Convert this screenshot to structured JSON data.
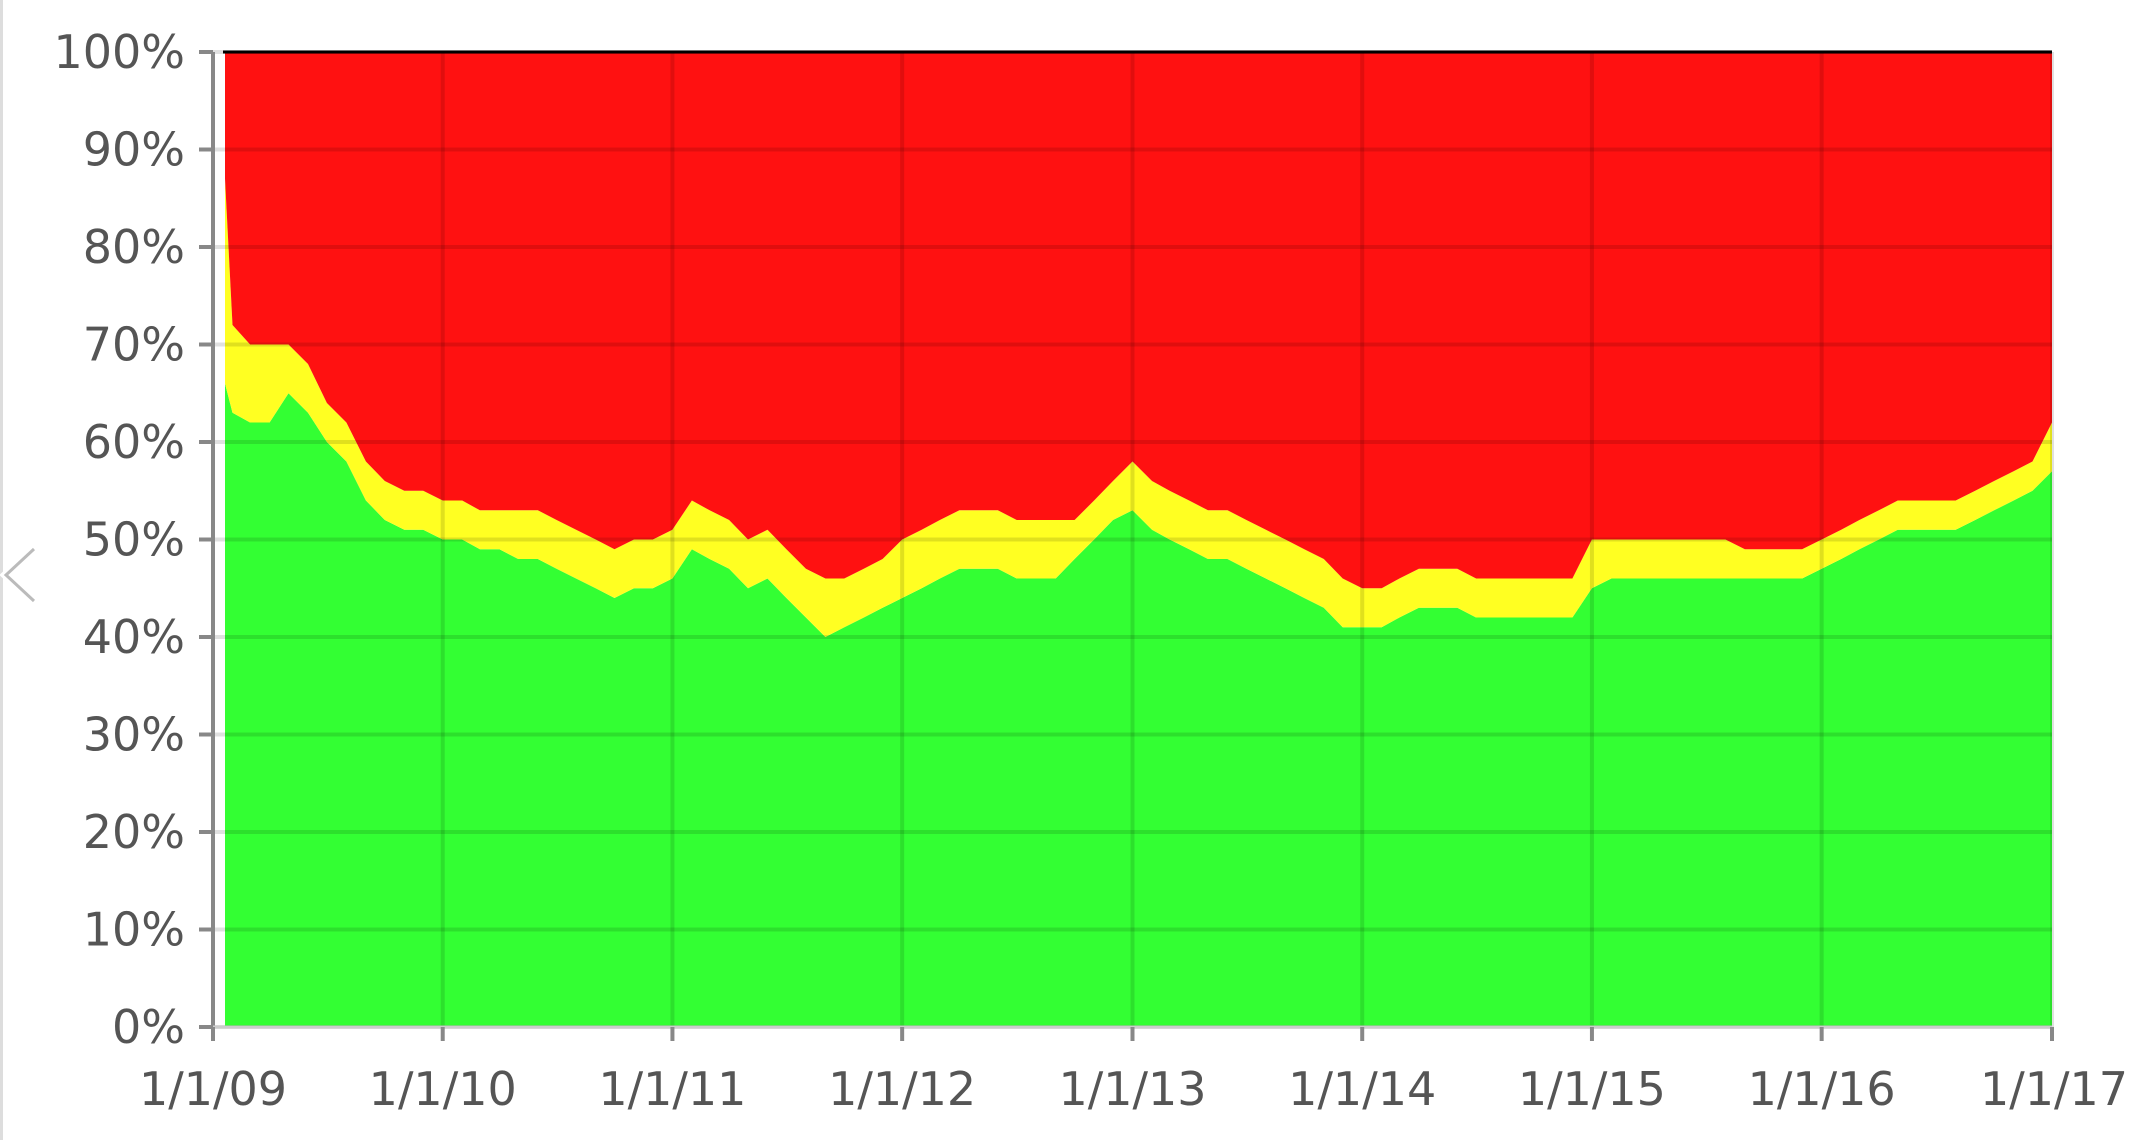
{
  "chart_data": {
    "type": "area",
    "stacked": true,
    "normalized_percent": true,
    "title": "",
    "xlabel": "",
    "ylabel": "",
    "ylim": [
      0,
      100
    ],
    "xlim": [
      "2009-01-01",
      "2017-01-01"
    ],
    "grid": true,
    "legend": "none",
    "y_ticks": [
      "0%",
      "10%",
      "20%",
      "30%",
      "40%",
      "50%",
      "60%",
      "70%",
      "80%",
      "90%",
      "100%"
    ],
    "x_ticks": [
      "1/1/09",
      "1/1/10",
      "1/1/11",
      "1/1/12",
      "1/1/13",
      "1/1/14",
      "1/1/15",
      "1/1/16",
      "1/1/17"
    ],
    "x": [
      "2009-01-01",
      "2009-02-01",
      "2009-03-01",
      "2009-04-01",
      "2009-05-01",
      "2009-06-01",
      "2009-07-01",
      "2009-08-01",
      "2009-09-01",
      "2009-10-01",
      "2009-11-01",
      "2009-12-01",
      "2010-01-01",
      "2010-02-01",
      "2010-03-01",
      "2010-04-01",
      "2010-05-01",
      "2010-06-01",
      "2010-07-01",
      "2010-08-01",
      "2010-09-01",
      "2010-10-01",
      "2010-11-01",
      "2010-12-01",
      "2011-01-01",
      "2011-02-01",
      "2011-03-01",
      "2011-04-01",
      "2011-05-01",
      "2011-06-01",
      "2011-07-01",
      "2011-08-01",
      "2011-09-01",
      "2011-10-01",
      "2011-11-01",
      "2011-12-01",
      "2012-01-01",
      "2012-02-01",
      "2012-03-01",
      "2012-04-01",
      "2012-05-01",
      "2012-06-01",
      "2012-07-01",
      "2012-08-01",
      "2012-09-01",
      "2012-10-01",
      "2012-11-01",
      "2012-12-01",
      "2013-01-01",
      "2013-02-01",
      "2013-03-01",
      "2013-04-01",
      "2013-05-01",
      "2013-06-01",
      "2013-07-01",
      "2013-08-01",
      "2013-09-01",
      "2013-10-01",
      "2013-11-01",
      "2013-12-01",
      "2014-01-01",
      "2014-02-01",
      "2014-03-01",
      "2014-04-01",
      "2014-05-01",
      "2014-06-01",
      "2014-07-01",
      "2014-08-01",
      "2014-09-01",
      "2014-10-01",
      "2014-11-01",
      "2014-12-01",
      "2015-01-01",
      "2015-02-01",
      "2015-03-01",
      "2015-04-01",
      "2015-05-01",
      "2015-06-01",
      "2015-07-01",
      "2015-08-01",
      "2015-09-01",
      "2015-10-01",
      "2015-11-01",
      "2015-12-01",
      "2016-01-01",
      "2016-02-01",
      "2016-03-01",
      "2016-04-01",
      "2016-05-01",
      "2016-06-01",
      "2016-07-01",
      "2016-08-01",
      "2016-09-01",
      "2016-10-01",
      "2016-11-01",
      "2016-12-01",
      "2017-01-01"
    ],
    "series": [
      {
        "color": "#33ff33",
        "values": [
          66,
          63,
          62,
          62,
          65,
          63,
          60,
          58,
          54,
          52,
          51,
          51,
          50,
          50,
          49,
          49,
          48,
          48,
          47,
          46,
          45,
          44,
          45,
          45,
          46,
          49,
          48,
          47,
          45,
          46,
          44,
          42,
          40,
          41,
          42,
          43,
          44,
          45,
          46,
          47,
          47,
          47,
          46,
          46,
          46,
          48,
          50,
          52,
          53,
          51,
          50,
          49,
          48,
          48,
          47,
          46,
          45,
          44,
          43,
          41,
          41,
          41,
          42,
          43,
          43,
          43,
          42,
          42,
          42,
          42,
          42,
          42,
          45,
          46,
          46,
          46,
          46,
          46,
          46,
          46,
          46,
          46,
          46,
          46,
          47,
          48,
          49,
          50,
          51,
          51,
          51,
          51,
          52,
          53,
          54,
          55,
          57
        ]
      },
      {
        "color": "#ffff22",
        "values": [
          21,
          9,
          8,
          8,
          5,
          5,
          4,
          4,
          4,
          4,
          4,
          4,
          4,
          4,
          4,
          4,
          5,
          5,
          5,
          5,
          5,
          5,
          5,
          5,
          5,
          5,
          5,
          5,
          5,
          5,
          5,
          5,
          6,
          5,
          5,
          5,
          6,
          6,
          6,
          6,
          6,
          6,
          6,
          6,
          6,
          4,
          4,
          4,
          5,
          5,
          5,
          5,
          5,
          5,
          5,
          5,
          5,
          5,
          5,
          5,
          4,
          4,
          4,
          4,
          4,
          4,
          4,
          4,
          4,
          4,
          4,
          4,
          5,
          4,
          4,
          4,
          4,
          4,
          4,
          4,
          3,
          3,
          3,
          3,
          3,
          3,
          3,
          3,
          3,
          3,
          3,
          3,
          3,
          3,
          3,
          3,
          5
        ]
      },
      {
        "color": "#ff1111",
        "values": [
          13,
          28,
          30,
          30,
          30,
          32,
          36,
          38,
          42,
          44,
          45,
          45,
          46,
          46,
          47,
          47,
          47,
          47,
          48,
          49,
          50,
          51,
          50,
          50,
          49,
          46,
          47,
          48,
          50,
          49,
          51,
          53,
          54,
          54,
          53,
          52,
          50,
          49,
          48,
          47,
          47,
          47,
          48,
          48,
          48,
          48,
          46,
          44,
          42,
          44,
          45,
          46,
          47,
          47,
          48,
          49,
          50,
          51,
          52,
          54,
          55,
          55,
          54,
          53,
          53,
          53,
          54,
          54,
          54,
          54,
          54,
          54,
          50,
          50,
          50,
          50,
          50,
          50,
          50,
          50,
          51,
          51,
          51,
          51,
          50,
          49,
          48,
          47,
          46,
          46,
          46,
          46,
          45,
          44,
          43,
          42,
          38
        ]
      }
    ]
  },
  "nav": {
    "prev_icon": "chevron-left-icon"
  }
}
